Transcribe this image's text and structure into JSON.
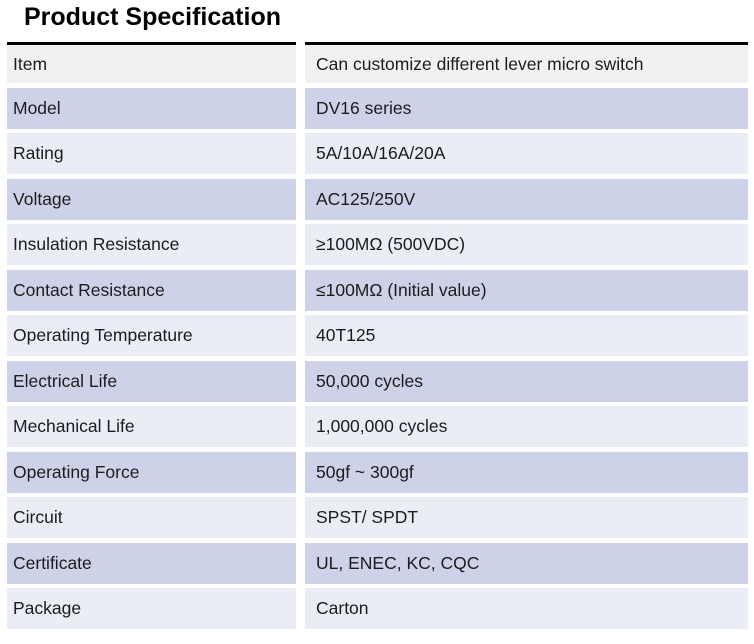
{
  "title": "Product Specification",
  "colors": {
    "gray": "#f1f1f2",
    "lavender": "#cdd2e8",
    "light": "#eaedf6",
    "top_rule": "#000000",
    "text": "#1c1c1e"
  },
  "table": {
    "columns": [
      "label",
      "value"
    ],
    "rows": [
      {
        "label": "Item",
        "value": "Can customize different lever micro switch",
        "bg": "gray"
      },
      {
        "label": "Model",
        "value": "DV16 series",
        "bg": "lavender"
      },
      {
        "label": "Rating",
        "value": "5A/10A/16A/20A",
        "bg": "light"
      },
      {
        "label": "Voltage",
        "value": "AC125/250V",
        "bg": "lavender"
      },
      {
        "label": "Insulation Resistance",
        "value": "≥100MΩ (500VDC)",
        "bg": "light"
      },
      {
        "label": "Contact Resistance",
        "value": "≤100MΩ (Initial value)",
        "bg": "lavender"
      },
      {
        "label": "Operating Temperature",
        "value": "40T125",
        "bg": "light"
      },
      {
        "label": "Electrical Life",
        "value": "50,000 cycles",
        "bg": "lavender"
      },
      {
        "label": "Mechanical Life",
        "value": "1,000,000 cycles",
        "bg": "light"
      },
      {
        "label": "Operating Force",
        "value": "50gf ~ 300gf",
        "bg": "lavender"
      },
      {
        "label": "Circuit",
        "value": "SPST/ SPDT",
        "bg": "light"
      },
      {
        "label": "Certificate",
        "value": "UL, ENEC, KC, CQC",
        "bg": "lavender"
      },
      {
        "label": "Package",
        "value": "Carton",
        "bg": "light"
      }
    ]
  }
}
